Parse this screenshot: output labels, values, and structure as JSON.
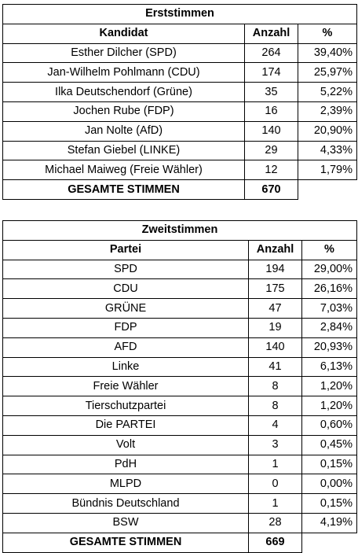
{
  "erst": {
    "title": "Erststimmen",
    "headers": [
      "Kandidat",
      "Anzahl",
      "%"
    ],
    "rows": [
      {
        "name": "Esther Dilcher (SPD)",
        "count": "264",
        "pct": "39,40%"
      },
      {
        "name": "Jan-Wilhelm Pohlmann (CDU)",
        "count": "174",
        "pct": "25,97%"
      },
      {
        "name": "Ilka Deutschendorf (Grüne)",
        "count": "35",
        "pct": "5,22%"
      },
      {
        "name": "Jochen Rube (FDP)",
        "count": "16",
        "pct": "2,39%"
      },
      {
        "name": "Jan Nolte (AfD)",
        "count": "140",
        "pct": "20,90%"
      },
      {
        "name": "Stefan Giebel (LINKE)",
        "count": "29",
        "pct": "4,33%"
      },
      {
        "name": "Michael Maiweg (Freie Wähler)",
        "count": "12",
        "pct": "1,79%"
      }
    ],
    "total_label": "GESAMTE STIMMEN",
    "total": "670"
  },
  "zweit": {
    "title": "Zweitstimmen",
    "headers": [
      "Partei",
      "Anzahl",
      "%"
    ],
    "rows": [
      {
        "name": "SPD",
        "count": "194",
        "pct": "29,00%"
      },
      {
        "name": "CDU",
        "count": "175",
        "pct": "26,16%"
      },
      {
        "name": "GRÜNE",
        "count": "47",
        "pct": "7,03%"
      },
      {
        "name": "FDP",
        "count": "19",
        "pct": "2,84%"
      },
      {
        "name": "AFD",
        "count": "140",
        "pct": "20,93%"
      },
      {
        "name": "Linke",
        "count": "41",
        "pct": "6,13%"
      },
      {
        "name": "Freie Wähler",
        "count": "8",
        "pct": "1,20%"
      },
      {
        "name": "Tierschutzpartei",
        "count": "8",
        "pct": "1,20%"
      },
      {
        "name": "Die PARTEI",
        "count": "4",
        "pct": "0,60%"
      },
      {
        "name": "Volt",
        "count": "3",
        "pct": "0,45%"
      },
      {
        "name": "PdH",
        "count": "1",
        "pct": "0,15%"
      },
      {
        "name": "MLPD",
        "count": "0",
        "pct": "0,00%"
      },
      {
        "name": "Bündnis Deutschland",
        "count": "1",
        "pct": "0,15%"
      },
      {
        "name": "BSW",
        "count": "28",
        "pct": "4,19%"
      }
    ],
    "total_label": "GESAMTE STIMMEN",
    "total": "669"
  }
}
